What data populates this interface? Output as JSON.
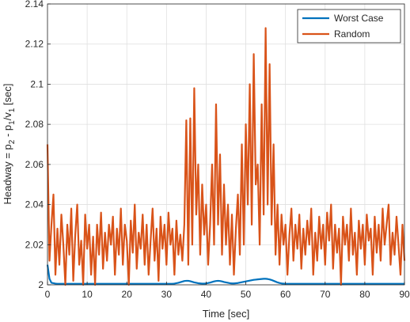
{
  "chart_data": {
    "type": "line",
    "xlabel": "Time [sec]",
    "ylabel": [
      "Headway = p",
      "2",
      " - p",
      "1",
      "/v",
      "1",
      " [sec]"
    ],
    "xlim": [
      0,
      90
    ],
    "xticks": [
      0,
      10,
      20,
      30,
      40,
      50,
      60,
      70,
      80,
      90
    ],
    "ylim": [
      2,
      2.14
    ],
    "yticks": [
      2,
      2.02,
      2.04,
      2.06,
      2.08,
      2.1,
      2.12,
      2.14
    ],
    "grid": true,
    "legend": "upper right",
    "x": [
      0,
      0.5,
      1,
      1.5,
      2,
      2.5,
      3,
      3.5,
      4,
      4.5,
      5,
      5.5,
      6,
      6.5,
      7,
      7.5,
      8,
      8.5,
      9,
      9.5,
      10,
      10.5,
      11,
      11.5,
      12,
      12.5,
      13,
      13.5,
      14,
      14.5,
      15,
      15.5,
      16,
      16.5,
      17,
      17.5,
      18,
      18.5,
      19,
      19.5,
      20,
      20.5,
      21,
      21.5,
      22,
      22.5,
      23,
      23.5,
      24,
      24.5,
      25,
      25.5,
      26,
      26.5,
      27,
      27.5,
      28,
      28.5,
      29,
      29.5,
      30,
      30.5,
      31,
      31.5,
      32,
      32.5,
      33,
      33.5,
      34,
      34.5,
      35,
      35.5,
      36,
      36.5,
      37,
      37.5,
      38,
      38.5,
      39,
      39.5,
      40,
      40.5,
      41,
      41.5,
      42,
      42.5,
      43,
      43.5,
      44,
      44.5,
      45,
      45.5,
      46,
      46.5,
      47,
      47.5,
      48,
      48.5,
      49,
      49.5,
      50,
      50.5,
      51,
      51.5,
      52,
      52.5,
      53,
      53.5,
      54,
      54.5,
      55,
      55.5,
      56,
      56.5,
      57,
      57.5,
      58,
      58.5,
      59,
      59.5,
      60,
      60.5,
      61,
      61.5,
      62,
      62.5,
      63,
      63.5,
      64,
      64.5,
      65,
      65.5,
      66,
      66.5,
      67,
      67.5,
      68,
      68.5,
      69,
      69.5,
      70,
      70.5,
      71,
      71.5,
      72,
      72.5,
      73,
      73.5,
      74,
      74.5,
      75,
      75.5,
      76,
      76.5,
      77,
      77.5,
      78,
      78.5,
      79,
      79.5,
      80,
      80.5,
      81,
      81.5,
      82,
      82.5,
      83,
      83.5,
      84,
      84.5,
      85,
      85.5,
      86,
      86.5,
      87,
      87.5,
      88,
      88.5,
      89,
      89.5,
      90
    ],
    "series": [
      {
        "name": "Worst Case",
        "color": "#0072bd",
        "values": [
          2.01,
          2.003,
          2.001,
          2.0008,
          2.0006,
          2.0005,
          2.0005,
          2.0005,
          2.0005,
          2.0005,
          2.0005,
          2.0005,
          2.0005,
          2.0005,
          2.0005,
          2.0005,
          2.0005,
          2.0005,
          2.0005,
          2.0005,
          2.0005,
          2.0005,
          2.0005,
          2.0005,
          2.0005,
          2.0005,
          2.0005,
          2.0005,
          2.0005,
          2.0005,
          2.0005,
          2.0005,
          2.0005,
          2.0005,
          2.0005,
          2.0005,
          2.0005,
          2.0005,
          2.0005,
          2.0005,
          2.0005,
          2.0005,
          2.0005,
          2.0005,
          2.0005,
          2.0005,
          2.0005,
          2.0005,
          2.0005,
          2.0005,
          2.0005,
          2.0005,
          2.0005,
          2.0005,
          2.0005,
          2.0005,
          2.0005,
          2.0005,
          2.0005,
          2.0005,
          2.0005,
          2.0005,
          2.0005,
          2.0005,
          2.0006,
          2.0008,
          2.001,
          2.0013,
          2.0016,
          2.0019,
          2.002,
          2.002,
          2.0018,
          2.0015,
          2.0012,
          2.001,
          2.0008,
          2.0007,
          2.0006,
          2.0006,
          2.0007,
          2.0009,
          2.0011,
          2.0014,
          2.0017,
          2.0019,
          2.002,
          2.0019,
          2.0017,
          2.0014,
          2.0012,
          2.001,
          2.0008,
          2.0007,
          2.0007,
          2.0008,
          2.0009,
          2.0011,
          2.0013,
          2.0015,
          2.0017,
          2.0019,
          2.0021,
          2.0023,
          2.0025,
          2.0026,
          2.0027,
          2.0028,
          2.0029,
          2.003,
          2.003,
          2.0029,
          2.0027,
          2.0024,
          2.002,
          2.0016,
          2.0012,
          2.0009,
          2.0007,
          2.0006,
          2.0005,
          2.0005,
          2.0005,
          2.0005,
          2.0005,
          2.0005,
          2.0005,
          2.0005,
          2.0005,
          2.0005,
          2.0005,
          2.0005,
          2.0005,
          2.0005,
          2.0005,
          2.0005,
          2.0005,
          2.0005,
          2.0005,
          2.0005,
          2.0005,
          2.0005,
          2.0005,
          2.0005,
          2.0005,
          2.0005,
          2.0005,
          2.0005,
          2.0005,
          2.0005,
          2.0005,
          2.0005,
          2.0005,
          2.0005,
          2.0005,
          2.0005,
          2.0005,
          2.0005,
          2.0005,
          2.0005,
          2.0005,
          2.0005,
          2.0005,
          2.0005,
          2.0005,
          2.0005,
          2.0005,
          2.0005,
          2.0005,
          2.0005,
          2.0005,
          2.0005,
          2.0005,
          2.0005,
          2.0005,
          2.0005,
          2.0005,
          2.0005,
          2.0005,
          2.0005,
          2.0005
        ]
      },
      {
        "name": "Random",
        "color": "#d95319",
        "values": [
          2.07,
          2.012,
          2.03,
          2.045,
          2.005,
          2.028,
          2.01,
          2.035,
          2.02,
          2.0,
          2.03,
          2.015,
          2.038,
          2.002,
          2.025,
          2.04,
          2.01,
          2.022,
          2.0,
          2.035,
          2.018,
          2.03,
          2.005,
          2.024,
          2.0,
          2.03,
          2.015,
          2.036,
          2.008,
          2.026,
          2.012,
          2.03,
          2.02,
          2.034,
          2.005,
          2.028,
          2.015,
          2.038,
          2.01,
          2.03,
          2.022,
          2.0,
          2.032,
          2.016,
          2.04,
          2.008,
          2.026,
          2.018,
          2.035,
          2.01,
          2.03,
          2.005,
          2.022,
          2.038,
          2.012,
          2.028,
          2.002,
          2.034,
          2.018,
          2.03,
          2.01,
          2.036,
          2.02,
          2.028,
          2.005,
          2.032,
          2.015,
          2.025,
          2.012,
          2.03,
          2.082,
          2.01,
          2.083,
          2.02,
          2.098,
          2.035,
          2.06,
          2.015,
          2.05,
          2.025,
          2.04,
          2.01,
          2.03,
          2.06,
          2.02,
          2.09,
          2.03,
          2.065,
          2.015,
          2.05,
          2.02,
          2.04,
          2.01,
          2.035,
          2.005,
          2.028,
          2.045,
          2.015,
          2.07,
          2.02,
          2.08,
          2.04,
          2.1,
          2.03,
          2.115,
          2.05,
          2.06,
          2.02,
          2.09,
          2.035,
          2.128,
          2.04,
          2.11,
          2.03,
          2.07,
          2.015,
          2.04,
          2.01,
          2.035,
          2.02,
          2.03,
          2.005,
          2.025,
          2.038,
          2.012,
          2.03,
          2.018,
          2.035,
          2.008,
          2.028,
          2.015,
          2.032,
          2.02,
          2.038,
          2.005,
          2.026,
          2.012,
          2.034,
          2.018,
          2.03,
          2.01,
          2.036,
          2.022,
          2.04,
          2.008,
          2.03,
          2.016,
          2.028,
          2.0,
          2.034,
          2.02,
          2.03,
          2.012,
          2.038,
          2.015,
          2.026,
          2.005,
          2.032,
          2.018,
          2.03,
          2.01,
          2.035,
          2.022,
          2.028,
          2.005,
          2.034,
          2.016,
          2.03,
          2.012,
          2.038,
          2.02,
          2.03,
          2.04,
          2.01,
          2.026,
          2.015,
          2.034,
          2.02,
          2.005,
          2.03,
          2.012
        ]
      }
    ]
  }
}
